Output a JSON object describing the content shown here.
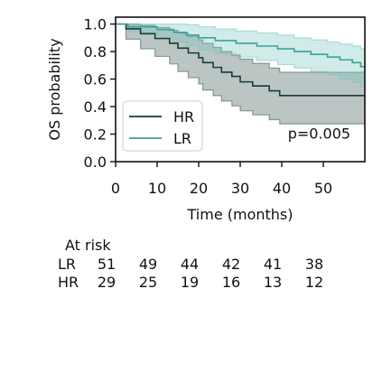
{
  "chart_data": {
    "type": "line",
    "subtype": "kaplan-meier",
    "xlabel": "Time (months)",
    "ylabel": "OS probability",
    "xlim": [
      0,
      60
    ],
    "ylim": [
      0,
      1.05
    ],
    "xticks": [
      0,
      10,
      20,
      30,
      40,
      50
    ],
    "yticks": [
      0.0,
      0.2,
      0.4,
      0.6,
      0.8,
      1.0
    ],
    "ytick_labels": [
      "0.0",
      "0.2",
      "0.4",
      "0.6",
      "0.8",
      "1.0"
    ],
    "grid": false,
    "legend_position": "bottom-left",
    "annotation": {
      "text": "p=0.005",
      "x": 49,
      "y": 0.2
    },
    "series": [
      {
        "name": "HR",
        "color": "#1a3a3a",
        "band_color": "#3c5a57",
        "step_points": [
          [
            0,
            1.0
          ],
          [
            2.5,
            0.965
          ],
          [
            6,
            0.93
          ],
          [
            9.5,
            0.895
          ],
          [
            13,
            0.86
          ],
          [
            15,
            0.825
          ],
          [
            17.5,
            0.79
          ],
          [
            20,
            0.755
          ],
          [
            21,
            0.72
          ],
          [
            23.5,
            0.685
          ],
          [
            25.5,
            0.65
          ],
          [
            28,
            0.62
          ],
          [
            30,
            0.58
          ],
          [
            33,
            0.55
          ],
          [
            37,
            0.515
          ],
          [
            39.5,
            0.48
          ],
          [
            60,
            0.48
          ]
        ],
        "ci_upper": [
          [
            0,
            1.0
          ],
          [
            2.5,
            1.0
          ],
          [
            6,
            0.99
          ],
          [
            9.5,
            0.975
          ],
          [
            13,
            0.955
          ],
          [
            15,
            0.935
          ],
          [
            17.5,
            0.91
          ],
          [
            20,
            0.885
          ],
          [
            21,
            0.86
          ],
          [
            23.5,
            0.83
          ],
          [
            25.5,
            0.8
          ],
          [
            28,
            0.775
          ],
          [
            30,
            0.745
          ],
          [
            33,
            0.715
          ],
          [
            37,
            0.68
          ],
          [
            39.5,
            0.65
          ],
          [
            60,
            0.65
          ]
        ],
        "ci_lower": [
          [
            0,
            1.0
          ],
          [
            2.5,
            0.89
          ],
          [
            6,
            0.82
          ],
          [
            9.5,
            0.765
          ],
          [
            13,
            0.71
          ],
          [
            15,
            0.655
          ],
          [
            17.5,
            0.61
          ],
          [
            20,
            0.565
          ],
          [
            21,
            0.52
          ],
          [
            23.5,
            0.48
          ],
          [
            25.5,
            0.44
          ],
          [
            28,
            0.405
          ],
          [
            30,
            0.37
          ],
          [
            33,
            0.34
          ],
          [
            37,
            0.305
          ],
          [
            39.5,
            0.275
          ],
          [
            60,
            0.275
          ]
        ]
      },
      {
        "name": "LR",
        "color": "#3aa39a",
        "band_color": "#7cc7c0",
        "step_points": [
          [
            0,
            1.0
          ],
          [
            3,
            0.98
          ],
          [
            10,
            0.96
          ],
          [
            14,
            0.94
          ],
          [
            17,
            0.92
          ],
          [
            20,
            0.9
          ],
          [
            24,
            0.88
          ],
          [
            29,
            0.86
          ],
          [
            34,
            0.84
          ],
          [
            39,
            0.82
          ],
          [
            43,
            0.8
          ],
          [
            47,
            0.78
          ],
          [
            51,
            0.76
          ],
          [
            54,
            0.74
          ],
          [
            57,
            0.72
          ],
          [
            59,
            0.69
          ],
          [
            60,
            0.69
          ]
        ],
        "ci_upper": [
          [
            0,
            1.0
          ],
          [
            3,
            1.0
          ],
          [
            10,
            1.0
          ],
          [
            14,
            1.0
          ],
          [
            17,
            0.995
          ],
          [
            20,
            0.98
          ],
          [
            24,
            0.965
          ],
          [
            29,
            0.95
          ],
          [
            34,
            0.935
          ],
          [
            39,
            0.92
          ],
          [
            43,
            0.9
          ],
          [
            47,
            0.885
          ],
          [
            51,
            0.87
          ],
          [
            54,
            0.855
          ],
          [
            57,
            0.84
          ],
          [
            59,
            0.82
          ],
          [
            60,
            0.82
          ]
        ],
        "ci_lower": [
          [
            0,
            1.0
          ],
          [
            3,
            0.94
          ],
          [
            10,
            0.9
          ],
          [
            14,
            0.87
          ],
          [
            17,
            0.84
          ],
          [
            20,
            0.81
          ],
          [
            24,
            0.785
          ],
          [
            29,
            0.76
          ],
          [
            34,
            0.735
          ],
          [
            39,
            0.705
          ],
          [
            43,
            0.68
          ],
          [
            47,
            0.655
          ],
          [
            51,
            0.63
          ],
          [
            54,
            0.6
          ],
          [
            57,
            0.575
          ],
          [
            59,
            0.545
          ],
          [
            60,
            0.545
          ]
        ]
      }
    ]
  },
  "at_risk": {
    "title": "At risk",
    "rows": [
      {
        "label": "LR",
        "values": [
          "51",
          "49",
          "44",
          "42",
          "41",
          "38"
        ]
      },
      {
        "label": "HR",
        "values": [
          "29",
          "25",
          "19",
          "16",
          "13",
          "12"
        ]
      }
    ]
  }
}
